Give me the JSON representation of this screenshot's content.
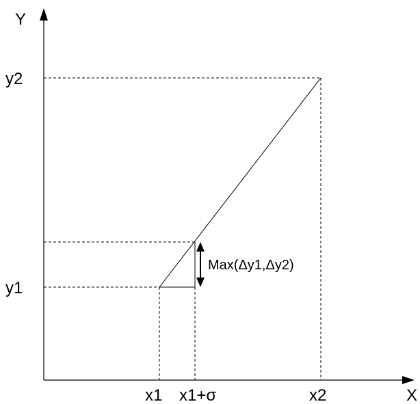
{
  "axes": {
    "x_label": "X",
    "y_label": "Y"
  },
  "ticks": {
    "x1": "x1",
    "x1_sigma": "x1+σ",
    "x2": "x2",
    "y1": "y1",
    "y2": "y2"
  },
  "annotation": {
    "max_label": "Max(Δy1,Δy2)"
  }
}
